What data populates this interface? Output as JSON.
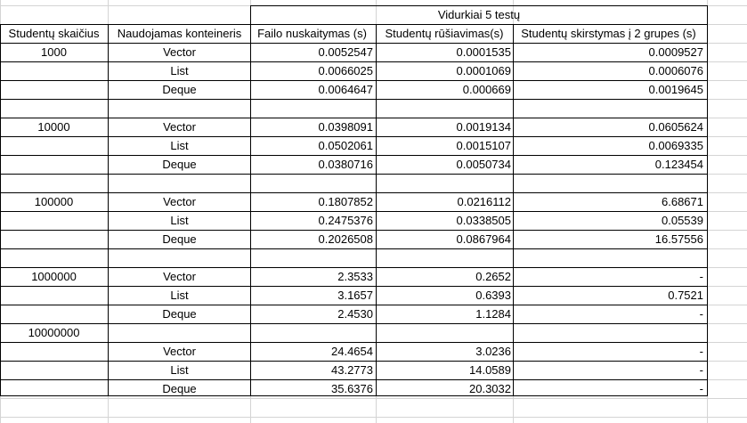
{
  "table": {
    "title": "Vidurkiai 5 testų",
    "headers": [
      "Studentų skaičius",
      "Naudojamas konteineris",
      "Failo nuskaitymas (s)",
      "Studentų rūšiavimas(s)",
      "Studentų skirstymas į 2 grupes (s)"
    ],
    "rows": [
      [
        "1000",
        "Vector",
        "0.0052547",
        "0.0001535",
        "0.0009527"
      ],
      [
        "",
        "List",
        "0.0066025",
        "0.0001069",
        "0.0006076"
      ],
      [
        "",
        "Deque",
        "0.0064647",
        "0.000669",
        "0.0019645"
      ],
      [
        "",
        "",
        "",
        "",
        ""
      ],
      [
        "10000",
        "Vector",
        "0.0398091",
        "0.0019134",
        "0.0605624"
      ],
      [
        "",
        "List",
        "0.0502061",
        "0.0015107",
        "0.0069335"
      ],
      [
        "",
        "Deque",
        "0.0380716",
        "0.0050734",
        "0.123454"
      ],
      [
        "",
        "",
        "",
        "",
        ""
      ],
      [
        "100000",
        "Vector",
        "0.1807852",
        "0.0216112",
        "6.68671"
      ],
      [
        "",
        "List",
        "0.2475376",
        "0.0338505",
        "0.05539"
      ],
      [
        "",
        "Deque",
        "0.2026508",
        "0.0867964",
        "16.57556"
      ],
      [
        "",
        "",
        "",
        "",
        ""
      ],
      [
        "1000000",
        "Vector",
        "2.3533",
        "0.2652",
        "-"
      ],
      [
        "",
        "List",
        "3.1657",
        "0.6393",
        "0.7521"
      ],
      [
        "",
        "Deque",
        "2.4530",
        "1.1284",
        "-"
      ],
      [
        "10000000",
        "",
        "",
        "",
        ""
      ],
      [
        "",
        "Vector",
        "24.4654",
        "3.0236",
        "-"
      ],
      [
        "",
        "List",
        "43.2773",
        "14.0589",
        "-"
      ],
      [
        "",
        "Deque",
        "35.6376",
        "20.3032",
        "-"
      ]
    ]
  }
}
